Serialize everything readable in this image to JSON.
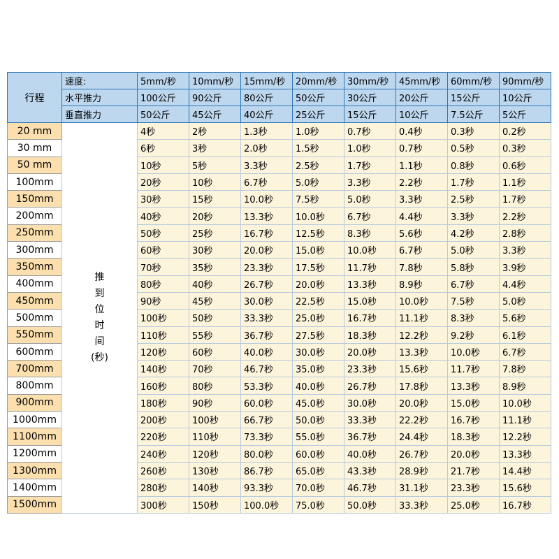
{
  "colors": {
    "header_bg": "#bdd7ee",
    "header_border": "#2e75b6",
    "body_bg": "#fdf4dc",
    "body_border": "#b7c9de",
    "stroke_alt_bg": "#fbdfae",
    "stroke_border": "#9c9c9c",
    "text": "#000000"
  },
  "chart_data": {
    "type": "table",
    "corner_label": "行程",
    "speed_row": {
      "label": "速度:",
      "values": [
        "5mm/秒",
        "10mm/秒",
        "15mm/秒",
        "20mm/秒",
        "30mm/秒",
        "45mm/秒",
        "60mm/秒",
        "90mm/秒"
      ]
    },
    "horizontal_thrust_row": {
      "label": "水平推力",
      "values": [
        "100公斤",
        "90公斤",
        "80公斤",
        "50公斤",
        "30公斤",
        "20公斤",
        "15公斤",
        "10公斤"
      ]
    },
    "vertical_thrust_row": {
      "label": "垂直推力",
      "values": [
        "50公斤",
        "45公斤",
        "40公斤",
        "25公斤",
        "15公斤",
        "10公斤",
        "7.5公斤",
        "5公斤"
      ]
    },
    "time_column_label": "推到位时间(秒)",
    "time_column_lines": [
      "推",
      "到",
      "位",
      "时",
      "间",
      "(秒)"
    ],
    "rows": [
      {
        "stroke": "20 mm",
        "times": [
          "4秒",
          "2秒",
          "1.3秒",
          "1.0秒",
          "0.7秒",
          "0.4秒",
          "0.3秒",
          "0.2秒"
        ]
      },
      {
        "stroke": "30 mm",
        "times": [
          "6秒",
          "3秒",
          "2.0秒",
          "1.5秒",
          "1.0秒",
          "0.7秒",
          "0.5秒",
          "0.3秒"
        ]
      },
      {
        "stroke": "50 mm",
        "times": [
          "10秒",
          "5秒",
          "3.3秒",
          "2.5秒",
          "1.7秒",
          "1.1秒",
          "0.8秒",
          "0.6秒"
        ]
      },
      {
        "stroke": "100mm",
        "times": [
          "20秒",
          "10秒",
          "6.7秒",
          "5.0秒",
          "3.3秒",
          "2.2秒",
          "1.7秒",
          "1.1秒"
        ]
      },
      {
        "stroke": "150mm",
        "times": [
          "30秒",
          "15秒",
          "10.0秒",
          "7.5秒",
          "5.0秒",
          "3.3秒",
          "2.5秒",
          "1.7秒"
        ]
      },
      {
        "stroke": "200mm",
        "times": [
          "40秒",
          "20秒",
          "13.3秒",
          "10.0秒",
          "6.7秒",
          "4.4秒",
          "3.3秒",
          "2.2秒"
        ]
      },
      {
        "stroke": "250mm",
        "times": [
          "50秒",
          "25秒",
          "16.7秒",
          "12.5秒",
          "8.3秒",
          "5.6秒",
          "4.2秒",
          "2.8秒"
        ]
      },
      {
        "stroke": "300mm",
        "times": [
          "60秒",
          "30秒",
          "20.0秒",
          "15.0秒",
          "10.0秒",
          "6.7秒",
          "5.0秒",
          "3.3秒"
        ]
      },
      {
        "stroke": "350mm",
        "times": [
          "70秒",
          "35秒",
          "23.3秒",
          "17.5秒",
          "11.7秒",
          "7.8秒",
          "5.8秒",
          "3.9秒"
        ]
      },
      {
        "stroke": "400mm",
        "times": [
          "80秒",
          "40秒",
          "26.7秒",
          "20.0秒",
          "13.3秒",
          "8.9秒",
          "6.7秒",
          "4.4秒"
        ]
      },
      {
        "stroke": "450mm",
        "times": [
          "90秒",
          "45秒",
          "30.0秒",
          "22.5秒",
          "15.0秒",
          "10.0秒",
          "7.5秒",
          "5.0秒"
        ]
      },
      {
        "stroke": "500mm",
        "times": [
          "100秒",
          "50秒",
          "33.3秒",
          "25.0秒",
          "16.7秒",
          "11.1秒",
          "8.3秒",
          "5.6秒"
        ]
      },
      {
        "stroke": "550mm",
        "times": [
          "110秒",
          "55秒",
          "36.7秒",
          "27.5秒",
          "18.3秒",
          "12.2秒",
          "9.2秒",
          "6.1秒"
        ]
      },
      {
        "stroke": "600mm",
        "times": [
          "120秒",
          "60秒",
          "40.0秒",
          "30.0秒",
          "20.0秒",
          "13.3秒",
          "10.0秒",
          "6.7秒"
        ]
      },
      {
        "stroke": "700mm",
        "times": [
          "140秒",
          "70秒",
          "46.7秒",
          "35.0秒",
          "23.3秒",
          "15.6秒",
          "11.7秒",
          "7.8秒"
        ]
      },
      {
        "stroke": "800mm",
        "times": [
          "160秒",
          "80秒",
          "53.3秒",
          "40.0秒",
          "26.7秒",
          "17.8秒",
          "13.3秒",
          "8.9秒"
        ]
      },
      {
        "stroke": "900mm",
        "times": [
          "180秒",
          "90秒",
          "60.0秒",
          "45.0秒",
          "30.0秒",
          "20.0秒",
          "15.0秒",
          "10.0秒"
        ]
      },
      {
        "stroke": "1000mm",
        "times": [
          "200秒",
          "100秒",
          "66.7秒",
          "50.0秒",
          "33.3秒",
          "22.2秒",
          "16.7秒",
          "11.1秒"
        ]
      },
      {
        "stroke": "1100mm",
        "times": [
          "220秒",
          "110秒",
          "73.3秒",
          "55.0秒",
          "36.7秒",
          "24.4秒",
          "18.3秒",
          "12.2秒"
        ]
      },
      {
        "stroke": "1200mm",
        "times": [
          "240秒",
          "120秒",
          "80.0秒",
          "60.0秒",
          "40.0秒",
          "26.7秒",
          "20.0秒",
          "13.3秒"
        ]
      },
      {
        "stroke": "1300mm",
        "times": [
          "260秒",
          "130秒",
          "86.7秒",
          "65.0秒",
          "43.3秒",
          "28.9秒",
          "21.7秒",
          "14.4秒"
        ]
      },
      {
        "stroke": "1400mm",
        "times": [
          "280秒",
          "140秒",
          "93.3秒",
          "70.0秒",
          "46.7秒",
          "31.1秒",
          "23.3秒",
          "15.6秒"
        ]
      },
      {
        "stroke": "1500mm",
        "times": [
          "300秒",
          "150秒",
          "100.0秒",
          "75.0秒",
          "50.0秒",
          "33.3秒",
          "25.0秒",
          "16.7秒"
        ]
      }
    ]
  }
}
